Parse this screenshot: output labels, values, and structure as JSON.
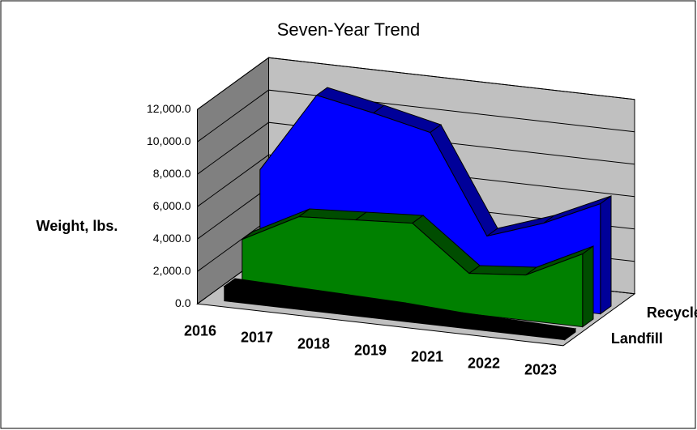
{
  "chart_data": {
    "type": "area3d",
    "title": "Seven-Year Trend",
    "y_label": "Weight, lbs.",
    "categories": [
      "2016",
      "2017",
      "2018",
      "2019",
      "2021",
      "2022",
      "2023"
    ],
    "series": [
      {
        "name": "Landfill",
        "color": "#000000",
        "values": [
          900,
          800,
          700,
          600,
          400,
          300,
          200
        ]
      },
      {
        "name": null,
        "color": "#008000",
        "values": [
          3000,
          4800,
          5000,
          5200,
          2500,
          2800,
          4500
        ]
      },
      {
        "name": "Recycle",
        "color": "#0000ff",
        "values": [
          6500,
          11500,
          10800,
          10000,
          4000,
          5200,
          6800
        ]
      }
    ],
    "ylim": [
      0,
      12000
    ],
    "yticks": [
      {
        "value": 0,
        "label": "0.0"
      },
      {
        "value": 2000,
        "label": "2,000.0"
      },
      {
        "value": 4000,
        "label": "4,000.0"
      },
      {
        "value": 6000,
        "label": "6,000.0"
      },
      {
        "value": 8000,
        "label": "8,000.0"
      },
      {
        "value": 10000,
        "label": "10,000.0"
      },
      {
        "value": 12000,
        "label": "12,000.0"
      }
    ],
    "grid": true
  }
}
